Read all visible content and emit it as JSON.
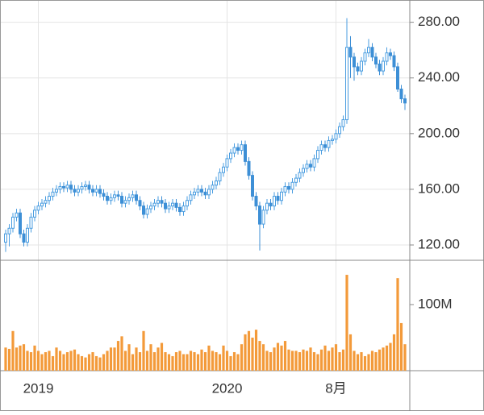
{
  "chart_data": [
    {
      "type": "candlestick",
      "up_color": "#4a9de0",
      "down_color": "#3d8fd6",
      "ylim": [
        109,
        296
      ],
      "yticks": [
        {
          "value": 120,
          "label": "120.00"
        },
        {
          "value": 160,
          "label": "160.00"
        },
        {
          "value": 200,
          "label": "200.00"
        },
        {
          "value": 240,
          "label": "240.00"
        },
        {
          "value": 280,
          "label": "280.00"
        }
      ],
      "grid": true,
      "open": [
        122,
        128,
        132,
        140,
        143,
        128,
        122,
        132,
        140,
        145,
        148,
        150,
        152,
        155,
        158,
        160,
        162,
        161,
        163,
        160,
        158,
        160,
        162,
        163,
        160,
        158,
        160,
        157,
        155,
        152,
        154,
        156,
        155,
        150,
        152,
        154,
        156,
        152,
        148,
        142,
        146,
        148,
        150,
        152,
        150,
        146,
        148,
        150,
        147,
        144,
        148,
        152,
        156,
        158,
        160,
        158,
        156,
        160,
        163,
        166,
        172,
        176,
        182,
        186,
        190,
        188,
        192,
        180,
        170,
        155,
        148,
        135,
        145,
        150,
        148,
        155,
        152,
        158,
        162,
        160,
        165,
        168,
        172,
        175,
        178,
        176,
        182,
        188,
        192,
        190,
        195,
        196,
        200,
        205,
        210,
        262,
        255,
        248,
        245,
        252,
        258,
        262,
        255,
        250,
        245,
        252,
        258,
        256,
        248,
        232,
        225
      ],
      "high": [
        131,
        135,
        143,
        146,
        146,
        131,
        135,
        143,
        148,
        151,
        153,
        155,
        158,
        161,
        163,
        165,
        165,
        166,
        166,
        163,
        163,
        165,
        166,
        166,
        163,
        163,
        163,
        160,
        158,
        157,
        159,
        159,
        158,
        155,
        157,
        159,
        159,
        155,
        151,
        149,
        151,
        153,
        155,
        155,
        153,
        151,
        153,
        153,
        150,
        151,
        155,
        159,
        161,
        163,
        163,
        161,
        163,
        166,
        169,
        175,
        179,
        185,
        189,
        193,
        193,
        195,
        195,
        183,
        173,
        158,
        151,
        148,
        153,
        153,
        158,
        158,
        161,
        165,
        165,
        168,
        171,
        175,
        178,
        181,
        181,
        185,
        191,
        195,
        195,
        198,
        199,
        203,
        208,
        213,
        283,
        270,
        258,
        251,
        255,
        261,
        268,
        265,
        258,
        253,
        255,
        262,
        261,
        259,
        251,
        235,
        228
      ],
      "low": [
        115,
        119,
        129,
        137,
        125,
        119,
        119,
        129,
        137,
        142,
        145,
        147,
        149,
        152,
        155,
        157,
        158,
        158,
        157,
        155,
        155,
        157,
        159,
        157,
        155,
        155,
        154,
        152,
        149,
        149,
        151,
        152,
        147,
        147,
        149,
        151,
        149,
        145,
        139,
        139,
        143,
        145,
        147,
        147,
        143,
        143,
        145,
        144,
        141,
        141,
        145,
        149,
        153,
        155,
        155,
        153,
        153,
        157,
        160,
        163,
        169,
        173,
        179,
        183,
        185,
        185,
        177,
        167,
        152,
        145,
        116,
        132,
        142,
        145,
        145,
        149,
        149,
        155,
        157,
        157,
        162,
        165,
        169,
        172,
        173,
        173,
        179,
        185,
        187,
        187,
        192,
        193,
        197,
        202,
        207,
        240,
        238,
        242,
        242,
        249,
        255,
        252,
        247,
        242,
        242,
        249,
        253,
        245,
        230,
        222,
        217
      ],
      "close": [
        128,
        132,
        140,
        143,
        128,
        122,
        132,
        140,
        145,
        148,
        150,
        152,
        155,
        158,
        160,
        162,
        161,
        163,
        160,
        158,
        160,
        162,
        163,
        160,
        158,
        160,
        157,
        155,
        152,
        154,
        156,
        155,
        150,
        152,
        154,
        156,
        152,
        148,
        142,
        146,
        148,
        150,
        152,
        150,
        146,
        148,
        150,
        147,
        144,
        148,
        152,
        156,
        158,
        160,
        158,
        156,
        160,
        163,
        166,
        172,
        176,
        182,
        186,
        190,
        188,
        192,
        180,
        170,
        155,
        148,
        135,
        145,
        150,
        148,
        155,
        152,
        158,
        162,
        160,
        165,
        168,
        172,
        175,
        178,
        176,
        182,
        188,
        192,
        190,
        195,
        196,
        200,
        205,
        210,
        262,
        255,
        248,
        245,
        252,
        258,
        262,
        255,
        250,
        245,
        252,
        258,
        256,
        248,
        232,
        225,
        222
      ]
    },
    {
      "type": "bar",
      "color": "#f39a3a",
      "ylim": [
        0,
        167
      ],
      "yticks": [
        {
          "value": 100,
          "label": "100M"
        }
      ],
      "categories": [
        null,
        null,
        null,
        null,
        null,
        null,
        null,
        null,
        null,
        "2019",
        null,
        null,
        null,
        null,
        null,
        null,
        null,
        null,
        null,
        null,
        null,
        null,
        null,
        null,
        null,
        null,
        null,
        null,
        null,
        null,
        null,
        null,
        null,
        null,
        null,
        null,
        null,
        null,
        null,
        null,
        null,
        null,
        null,
        null,
        null,
        null,
        null,
        null,
        null,
        null,
        null,
        null,
        null,
        null,
        null,
        null,
        null,
        null,
        null,
        null,
        null,
        "2020",
        null,
        null,
        null,
        null,
        null,
        null,
        null,
        null,
        null,
        null,
        null,
        null,
        null,
        null,
        null,
        null,
        null,
        null,
        null,
        null,
        null,
        null,
        null,
        null,
        null,
        null,
        null,
        null,
        null,
        "8月",
        null,
        null,
        null,
        null,
        null,
        null,
        null,
        null,
        null,
        null,
        null,
        null,
        null,
        null,
        null,
        null,
        null,
        null,
        null
      ],
      "values": [
        35,
        33,
        60,
        35,
        38,
        40,
        30,
        28,
        38,
        30,
        25,
        28,
        30,
        22,
        35,
        30,
        25,
        28,
        30,
        32,
        25,
        22,
        20,
        25,
        28,
        22,
        20,
        25,
        30,
        35,
        35,
        45,
        52,
        30,
        40,
        25,
        35,
        28,
        60,
        30,
        40,
        28,
        35,
        42,
        28,
        25,
        22,
        28,
        30,
        25,
        25,
        30,
        28,
        25,
        32,
        28,
        38,
        30,
        28,
        25,
        38,
        30,
        22,
        28,
        25,
        40,
        55,
        60,
        50,
        62,
        45,
        40,
        30,
        28,
        35,
        42,
        38,
        45,
        32,
        30,
        30,
        28,
        32,
        30,
        35,
        28,
        25,
        32,
        38,
        30,
        35,
        40,
        28,
        32,
        145,
        55,
        30,
        25,
        28,
        22,
        25,
        30,
        28,
        32,
        35,
        38,
        42,
        55,
        140,
        72,
        40
      ]
    }
  ]
}
